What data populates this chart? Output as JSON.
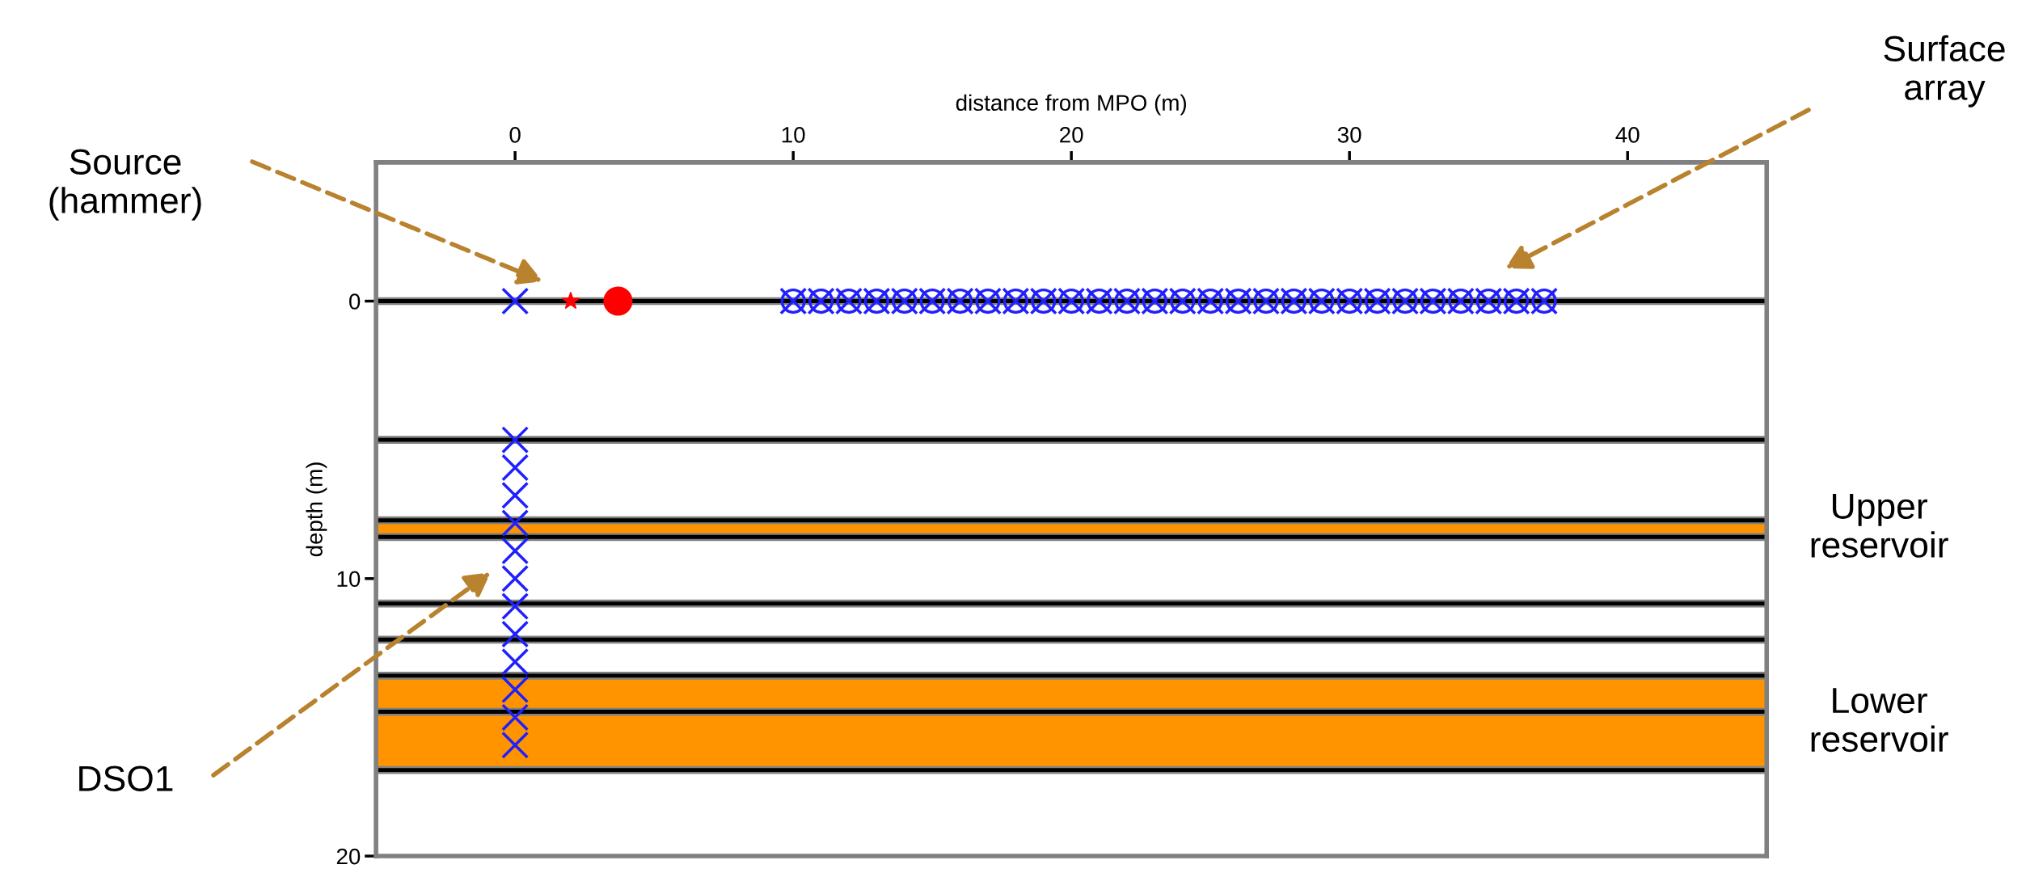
{
  "chart_data": {
    "type": "scatter",
    "xlabel": "distance from MPO (m)",
    "ylabel": "depth (m)",
    "xlim": [
      -5,
      45
    ],
    "xticks": [
      0,
      10,
      20,
      30,
      40
    ],
    "ylim": [
      20,
      -5
    ],
    "yticks": [
      0,
      10,
      20
    ],
    "grid": false,
    "series": [
      {
        "color": "#2020ff",
        "marker": "cross",
        "x": [
          0,
          0,
          0,
          0,
          0,
          0,
          0,
          0,
          0,
          0,
          0,
          0,
          0
        ],
        "values": [
          0,
          5,
          6,
          7,
          8,
          9,
          10,
          11,
          12,
          13,
          14,
          15,
          16
        ]
      },
      {
        "color": "#2020ff",
        "marker": "circle",
        "x": [
          10,
          11,
          12,
          13,
          14,
          15,
          16,
          17,
          18,
          19,
          20,
          21,
          22,
          23,
          24,
          25,
          26,
          27,
          28,
          29,
          30,
          31,
          32,
          33,
          34,
          35,
          36,
          37
        ],
        "values": [
          0,
          0,
          0,
          0,
          0,
          0,
          0,
          0,
          0,
          0,
          0,
          0,
          0,
          0,
          0,
          0,
          0,
          0,
          0,
          0,
          0,
          0,
          0,
          0,
          0,
          0,
          0,
          0
        ]
      },
      {
        "color": "#2020ff",
        "marker": "cross",
        "x": [
          10,
          11,
          12,
          13,
          14,
          15,
          16,
          17,
          18,
          19,
          20,
          21,
          22,
          23,
          24,
          25,
          26,
          27,
          28,
          29,
          30,
          31,
          32,
          33,
          34,
          35,
          36,
          37
        ],
        "values": [
          0,
          0,
          0,
          0,
          0,
          0,
          0,
          0,
          0,
          0,
          0,
          0,
          0,
          0,
          0,
          0,
          0,
          0,
          0,
          0,
          0,
          0,
          0,
          0,
          0,
          0,
          0,
          0
        ]
      },
      {
        "color": "#ff0000",
        "marker": "star",
        "x": [
          2
        ],
        "values": [
          0
        ]
      },
      {
        "color": "#ff0000",
        "marker": "filled_circle",
        "x": [
          3.7
        ],
        "values": [
          0
        ]
      }
    ],
    "ref_lines": [
      {
        "axis": "y",
        "value": 0,
        "color": "#000000"
      },
      {
        "axis": "y",
        "value": 5,
        "color": "#000000"
      },
      {
        "axis": "y",
        "value": 7.9,
        "color": "#000000"
      },
      {
        "axis": "y",
        "value": 8.5,
        "color": "#000000"
      },
      {
        "axis": "y",
        "value": 10.9,
        "color": "#000000"
      },
      {
        "axis": "y",
        "value": 12.2,
        "color": "#000000"
      },
      {
        "axis": "y",
        "value": 13.5,
        "color": "#000000"
      },
      {
        "axis": "y",
        "value": 14.8,
        "color": "#000000"
      },
      {
        "axis": "y",
        "value": 16.9,
        "color": "#000000"
      }
    ],
    "bands": [
      {
        "axis": "y",
        "from": 7.9,
        "to": 8.5,
        "label": "Upper\nreservoir",
        "color": "#ff9400"
      },
      {
        "axis": "y",
        "from": 13.5,
        "to": 16.9,
        "label": "Lower\nreservoir",
        "color": "#ff9400"
      }
    ],
    "annotations": [
      "Source\n(hammer)",
      "Surface\narray",
      "DSO1"
    ]
  }
}
